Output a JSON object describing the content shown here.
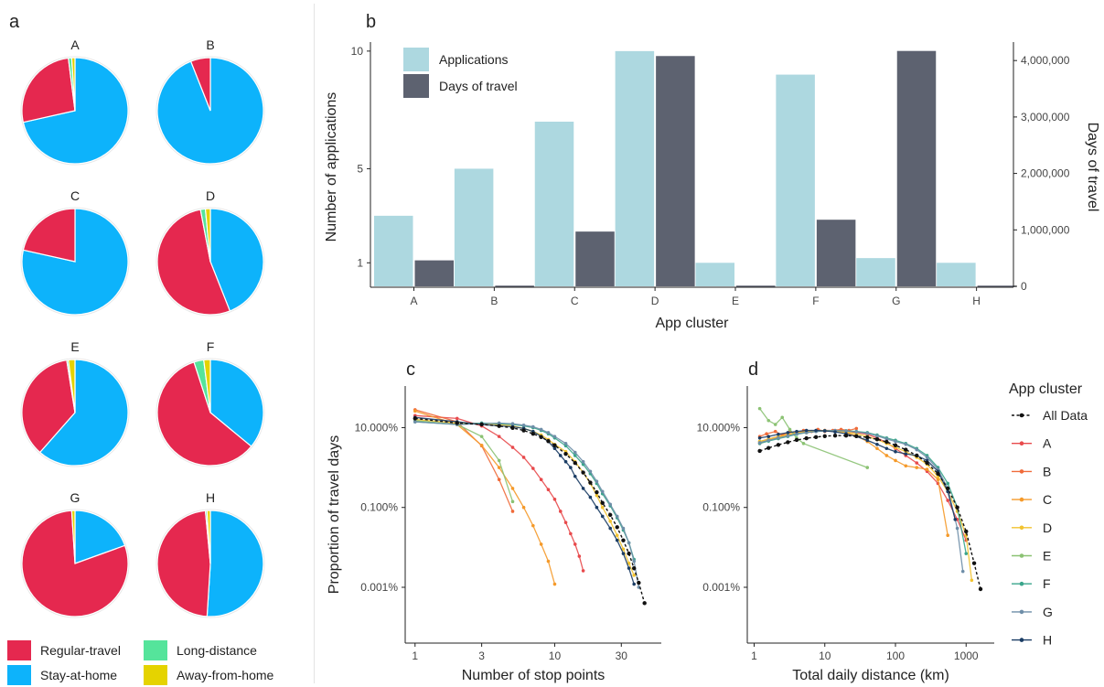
{
  "panel_labels": {
    "a": "a",
    "b": "b",
    "c": "c",
    "d": "d"
  },
  "colors": {
    "regular_travel": "#e5284f",
    "stay_at_home": "#0db3fb",
    "long_distance": "#55e49b",
    "away_from_home": "#e5d300",
    "applications_bar": "#add8e0",
    "days_bar": "#5d6270",
    "all_data": "#111111",
    "series": {
      "A": "#e84a4c",
      "B": "#f06b3a",
      "C": "#f59a2a",
      "D": "#f2c330",
      "E": "#8bc273",
      "F": "#3aa58b",
      "G": "#6e8ea8",
      "H": "#1a3c64"
    }
  },
  "pie_legend": {
    "items": [
      {
        "key": "regular",
        "label": "Regular-travel",
        "color": "#e5284f"
      },
      {
        "key": "long",
        "label": "Long-distance",
        "color": "#55e49b"
      },
      {
        "key": "home",
        "label": "Stay-at-home",
        "color": "#0db3fb"
      },
      {
        "key": "away",
        "label": "Away-from-home",
        "color": "#e5d300"
      }
    ]
  },
  "chart_data": [
    {
      "panel": "a",
      "type": "pie",
      "slice_order": [
        "Stay-at-home",
        "Regular-travel",
        "Long-distance",
        "Away-from-home"
      ],
      "pies": [
        {
          "title": "A",
          "values": {
            "Stay-at-home": 0.715,
            "Regular-travel": 0.265,
            "Long-distance": 0.01,
            "Away-from-home": 0.01
          }
        },
        {
          "title": "B",
          "values": {
            "Stay-at-home": 0.94,
            "Regular-travel": 0.06,
            "Long-distance": 0,
            "Away-from-home": 0
          }
        },
        {
          "title": "C",
          "values": {
            "Stay-at-home": 0.785,
            "Regular-travel": 0.215,
            "Long-distance": 0,
            "Away-from-home": 0
          }
        },
        {
          "title": "D",
          "values": {
            "Stay-at-home": 0.44,
            "Regular-travel": 0.53,
            "Long-distance": 0.015,
            "Away-from-home": 0.015
          }
        },
        {
          "title": "E",
          "values": {
            "Stay-at-home": 0.615,
            "Regular-travel": 0.36,
            "Long-distance": 0.005,
            "Away-from-home": 0.02
          }
        },
        {
          "title": "F",
          "values": {
            "Stay-at-home": 0.36,
            "Regular-travel": 0.59,
            "Long-distance": 0.03,
            "Away-from-home": 0.02
          }
        },
        {
          "title": "G",
          "values": {
            "Stay-at-home": 0.195,
            "Regular-travel": 0.795,
            "Long-distance": 0,
            "Away-from-home": 0.01
          }
        },
        {
          "title": "H",
          "values": {
            "Stay-at-home": 0.51,
            "Regular-travel": 0.475,
            "Long-distance": 0.005,
            "Away-from-home": 0.01
          }
        }
      ]
    },
    {
      "panel": "b",
      "type": "bar",
      "xlabel": "App cluster",
      "ylabel": "Number of applications",
      "ylabel_right": "Days of travel",
      "categories": [
        "A",
        "B",
        "C",
        "D",
        "E",
        "F",
        "G",
        "H"
      ],
      "series": [
        {
          "name": "Applications",
          "axis": "left",
          "values": [
            3,
            5,
            7,
            10,
            1,
            9,
            1.2,
            1
          ]
        },
        {
          "name": "Days of travel",
          "axis": "right",
          "values": [
            460000,
            0,
            970000,
            4080000,
            0,
            1180000,
            4170000,
            0
          ]
        }
      ],
      "yticks_left": [
        1,
        5,
        10
      ],
      "ylim_left": [
        0,
        10.15
      ],
      "yticks_right": [
        0,
        1000000,
        2000000,
        3000000,
        4000000
      ],
      "yticklabels_right": [
        "0",
        "1,000,000",
        "2,000,000",
        "3,000,000",
        "4,000,000"
      ],
      "ylim_right": [
        0,
        4230000
      ],
      "legend": "top-left"
    },
    {
      "panel": "c",
      "type": "line",
      "xlabel": "Number of stop points",
      "ylabel": "Proportion of travel days",
      "xscale": "log",
      "yscale": "log",
      "xticks": [
        1,
        3,
        10,
        30
      ],
      "xticklabels": [
        "1",
        "3",
        "10",
        "30"
      ],
      "yticks": [
        0.001,
        0.1,
        10
      ],
      "yticklabels": [
        "0.001%",
        "0.100%",
        "10.000%"
      ],
      "series": [
        {
          "name": "A",
          "x": [
            1,
            2,
            3,
            4,
            5,
            6,
            7,
            8,
            9,
            10,
            11,
            12,
            13,
            14,
            15,
            16
          ],
          "y": [
            20,
            17,
            11,
            6,
            3.2,
            1.8,
            0.95,
            0.5,
            0.28,
            0.16,
            0.08,
            0.042,
            0.022,
            0.012,
            0.006,
            0.0026
          ]
        },
        {
          "name": "B",
          "x": [
            1,
            2,
            3,
            4,
            5
          ],
          "y": [
            28,
            14,
            3.5,
            0.5,
            0.08
          ]
        },
        {
          "name": "C",
          "x": [
            1,
            2,
            3,
            4,
            5,
            6,
            7,
            8,
            9,
            10
          ],
          "y": [
            26,
            12,
            3.6,
            1,
            0.3,
            0.1,
            0.035,
            0.012,
            0.0045,
            0.0012
          ]
        },
        {
          "name": "D",
          "x": [
            1,
            2,
            3,
            4,
            5,
            6,
            7,
            8,
            9,
            10,
            12,
            14,
            16,
            18,
            20,
            22,
            25,
            28,
            31,
            34,
            37
          ],
          "y": [
            16,
            13,
            12.5,
            12,
            11,
            9.5,
            8,
            6.5,
            5,
            3.8,
            2.5,
            1.4,
            0.75,
            0.4,
            0.2,
            0.1,
            0.045,
            0.02,
            0.009,
            0.004,
            0.002
          ]
        },
        {
          "name": "E",
          "x": [
            1,
            2,
            3,
            4,
            5
          ],
          "y": [
            15,
            12,
            6,
            1.5,
            0.14
          ]
        },
        {
          "name": "F",
          "x": [
            1,
            2,
            3,
            4,
            5,
            6,
            7,
            8,
            9,
            10,
            12,
            14,
            16,
            18,
            20,
            22,
            25,
            28,
            31,
            34,
            37
          ],
          "y": [
            14,
            12,
            13,
            12.5,
            12,
            11,
            10,
            8.5,
            7,
            5.5,
            3.5,
            2,
            1.2,
            0.7,
            0.4,
            0.22,
            0.11,
            0.055,
            0.027,
            0.013,
            0.005
          ]
        },
        {
          "name": "G",
          "x": [
            1,
            2,
            3,
            4,
            5,
            6,
            7,
            8,
            9,
            10,
            12,
            14,
            16,
            18,
            20,
            22,
            25,
            28,
            31,
            34,
            37,
            40
          ],
          "y": [
            14,
            12,
            12.5,
            13,
            12.5,
            11.5,
            10.5,
            9,
            7.5,
            6,
            4,
            2.4,
            1.4,
            0.8,
            0.45,
            0.25,
            0.12,
            0.06,
            0.03,
            0.013,
            0.0045,
            0.001
          ]
        },
        {
          "name": "H",
          "x": [
            1,
            2,
            3,
            4,
            5,
            6,
            7,
            8,
            9,
            10,
            11,
            12,
            13,
            14,
            16,
            18,
            20,
            22,
            25,
            28,
            31,
            34,
            37
          ],
          "y": [
            18,
            14,
            12,
            11,
            10.5,
            9.5,
            8,
            6,
            4.5,
            3,
            2,
            1.4,
            1,
            0.6,
            0.3,
            0.18,
            0.1,
            0.06,
            0.03,
            0.015,
            0.007,
            0.003,
            0.0012
          ]
        },
        {
          "name": "All Data",
          "style": "dashed",
          "x": [
            1,
            2,
            3,
            4,
            5,
            6,
            7,
            8,
            9,
            10,
            12,
            14,
            16,
            18,
            20,
            22,
            25,
            28,
            31,
            34,
            37,
            40,
            44
          ],
          "y": [
            17,
            13,
            12,
            11,
            9.8,
            8.5,
            7,
            5.8,
            4.6,
            3.6,
            2.2,
            1.3,
            0.75,
            0.42,
            0.24,
            0.13,
            0.065,
            0.032,
            0.015,
            0.007,
            0.003,
            0.0013,
            0.0004
          ]
        }
      ]
    },
    {
      "panel": "d",
      "type": "line",
      "xlabel": "Total daily distance (km)",
      "xscale": "log",
      "yscale": "log",
      "xticks": [
        1,
        10,
        100,
        1000
      ],
      "xticklabels": [
        "1",
        "10",
        "100",
        "1000"
      ],
      "yticks": [
        0.001,
        0.1,
        10
      ],
      "yticklabels": [
        "0.001%",
        "0.100%",
        "10.000%"
      ],
      "legend_title": "App cluster",
      "legend_order": [
        "All Data",
        "A",
        "B",
        "C",
        "D",
        "E",
        "F",
        "G",
        "H"
      ],
      "series": [
        {
          "name": "A",
          "x": [
            1.2,
            1.6,
            2.2,
            3,
            4,
            5.5,
            7.5,
            10,
            14,
            20,
            28,
            40,
            55,
            75,
            100,
            140,
            200,
            280,
            400,
            550,
            750,
            1000
          ],
          "y": [
            4,
            4.8,
            5.5,
            6.2,
            7,
            7.5,
            8,
            8.5,
            8.5,
            8.2,
            7.5,
            6.8,
            5.5,
            4.2,
            3,
            2,
            1.3,
            0.8,
            0.4,
            0.15,
            0.05,
            0.015
          ]
        },
        {
          "name": "B",
          "x": [
            1.2,
            1.5,
            2,
            2.5,
            3.2,
            4,
            5,
            6.5,
            8,
            10,
            13,
            17,
            22,
            28
          ],
          "y": [
            6,
            7,
            8,
            6.5,
            8,
            7,
            8.5,
            8,
            9,
            8,
            8.5,
            9,
            8.5,
            9.5
          ]
        },
        {
          "name": "C",
          "x": [
            1.2,
            1.6,
            2.2,
            3,
            4,
            5.5,
            7.5,
            10,
            14,
            20,
            28,
            40,
            55,
            75,
            100,
            140,
            200,
            280,
            400,
            550
          ],
          "y": [
            4.5,
            5.2,
            6,
            6.8,
            7.5,
            8,
            8.3,
            8.5,
            8.3,
            7.5,
            6.2,
            4.5,
            3,
            2,
            1.5,
            1.1,
            1,
            0.9,
            0.5,
            0.02
          ]
        },
        {
          "name": "D",
          "x": [
            1.2,
            1.6,
            2.2,
            3,
            4,
            5.5,
            7.5,
            10,
            14,
            20,
            28,
            40,
            55,
            75,
            100,
            140,
            200,
            280,
            400,
            550,
            750,
            1000,
            1200
          ],
          "y": [
            4.5,
            5,
            5.8,
            6.5,
            7.2,
            7.8,
            8.2,
            8.4,
            8.2,
            7.8,
            7,
            6,
            5,
            4,
            3.2,
            2.5,
            1.8,
            1.2,
            0.6,
            0.25,
            0.08,
            0.02,
            0.0015
          ]
        },
        {
          "name": "E",
          "x": [
            1.2,
            1.6,
            2,
            2.5,
            3.2,
            4,
            5,
            40
          ],
          "y": [
            30,
            15,
            12,
            18,
            9,
            5.5,
            4,
            1
          ]
        },
        {
          "name": "F",
          "x": [
            1.2,
            1.6,
            2.2,
            3,
            4,
            5.5,
            7.5,
            10,
            14,
            20,
            28,
            40,
            55,
            75,
            100,
            140,
            200,
            280,
            400,
            550,
            750,
            1000
          ],
          "y": [
            4,
            4.6,
            5.3,
            6,
            6.8,
            7.5,
            8,
            8.3,
            8.4,
            8.3,
            8,
            7.5,
            6.5,
            5.5,
            4.8,
            4,
            3,
            2,
            1,
            0.4,
            0.1,
            0.007
          ]
        },
        {
          "name": "G",
          "x": [
            1.2,
            1.6,
            2.2,
            3,
            4,
            5.5,
            7.5,
            10,
            14,
            20,
            28,
            40,
            55,
            75,
            100,
            140,
            200,
            280,
            400,
            550,
            750,
            900
          ],
          "y": [
            4.2,
            4.8,
            5.5,
            6.2,
            7,
            7.6,
            8,
            8.3,
            8.4,
            8.2,
            7.8,
            7.2,
            6.2,
            5.2,
            4.5,
            3.8,
            2.8,
            1.8,
            0.9,
            0.3,
            0.03,
            0.0025
          ]
        },
        {
          "name": "H",
          "x": [
            1.2,
            1.6,
            2.2,
            3,
            4,
            5.5,
            7.5,
            10,
            14,
            20,
            28,
            40,
            55,
            75,
            100,
            140,
            200,
            280,
            400,
            550,
            700
          ],
          "y": [
            5.5,
            6,
            6.8,
            7.5,
            8,
            8.5,
            8.5,
            8.3,
            7.8,
            7,
            6,
            4.8,
            3.8,
            3,
            2.5,
            2.2,
            2,
            1.5,
            0.8,
            0.25,
            0.05
          ]
        },
        {
          "name": "All Data",
          "style": "dashed",
          "x": [
            1.2,
            1.6,
            2.2,
            3,
            4,
            5.5,
            7.5,
            10,
            14,
            20,
            28,
            40,
            55,
            75,
            100,
            140,
            200,
            280,
            400,
            550,
            750,
            1000,
            1300,
            1600
          ],
          "y": [
            2.6,
            3.1,
            3.7,
            4.3,
            4.9,
            5.4,
            5.8,
            6.1,
            6.3,
            6.3,
            6.1,
            5.7,
            5.1,
            4.4,
            3.6,
            2.8,
            2,
            1.3,
            0.7,
            0.3,
            0.1,
            0.025,
            0.004,
            0.0009
          ]
        }
      ]
    }
  ]
}
